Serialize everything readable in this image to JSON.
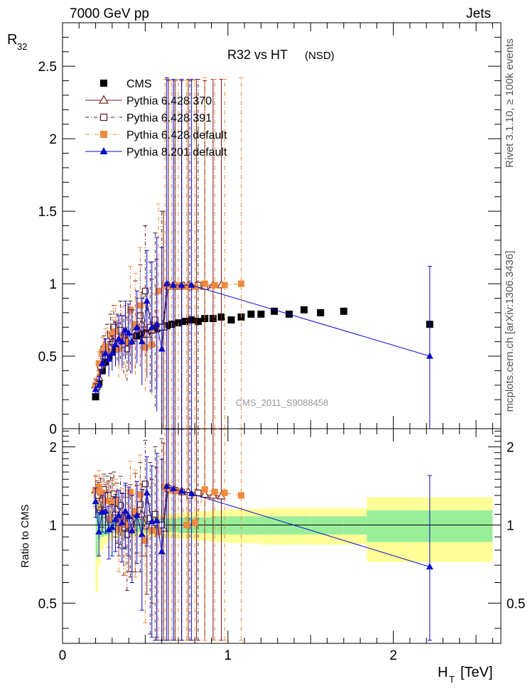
{
  "header": {
    "left": "7000 GeV pp",
    "right": "Jets"
  },
  "side_labels": {
    "rivet": "Rivet 3.1.10, ≥ 100k events",
    "mcplots": "mcplots.cern.ch [arXiv:1306.3436]"
  },
  "chart_data": [
    {
      "type": "scatter",
      "panel": "main",
      "title": "R32 vs HT",
      "title_tag": "(NSD)",
      "watermark": "CMS_2011_S9088458",
      "ylabel": "R",
      "ylabel_sub": "32",
      "xlim": [
        0,
        2.65
      ],
      "ylim": [
        0,
        2.8
      ],
      "yticks": [
        0,
        0.5,
        1,
        1.5,
        2,
        2.5
      ],
      "ytick_labels": [
        "0",
        "0.5",
        "1",
        "1.5",
        "2",
        "2.5"
      ],
      "legend_position": "top-left",
      "series": [
        {
          "name": "CMS",
          "marker": "filled-square",
          "color": "#000000",
          "x": [
            0.2,
            0.22,
            0.24,
            0.26,
            0.28,
            0.3,
            0.32,
            0.34,
            0.36,
            0.38,
            0.4,
            0.42,
            0.45,
            0.48,
            0.51,
            0.54,
            0.57,
            0.6,
            0.63,
            0.66,
            0.7,
            0.74,
            0.78,
            0.82,
            0.86,
            0.91,
            0.96,
            1.02,
            1.08,
            1.14,
            1.2,
            1.28,
            1.37,
            1.46,
            1.56,
            1.7,
            2.22
          ],
          "y": [
            0.22,
            0.32,
            0.4,
            0.46,
            0.5,
            0.53,
            0.55,
            0.57,
            0.59,
            0.6,
            0.61,
            0.63,
            0.64,
            0.65,
            0.66,
            0.68,
            0.69,
            0.7,
            0.71,
            0.72,
            0.73,
            0.74,
            0.75,
            0.74,
            0.76,
            0.76,
            0.77,
            0.75,
            0.77,
            0.79,
            0.79,
            0.81,
            0.79,
            0.82,
            0.8,
            0.81,
            0.72
          ]
        },
        {
          "name": "Pythia 6.428 370",
          "marker": "open-triangle",
          "color": "#7a1a1a",
          "x": [
            0.2,
            0.22,
            0.24,
            0.26,
            0.28,
            0.3,
            0.32,
            0.34,
            0.36,
            0.38,
            0.4,
            0.42,
            0.45,
            0.48,
            0.51,
            0.54,
            0.57,
            0.61,
            0.64,
            0.68,
            0.72,
            0.76,
            0.81,
            0.86,
            0.91,
            0.96
          ],
          "y": [
            0.3,
            0.35,
            0.45,
            0.5,
            0.57,
            0.6,
            0.62,
            0.58,
            0.63,
            0.67,
            0.6,
            0.62,
            0.7,
            0.72,
            0.65,
            0.68,
            0.72,
            0.7,
            0.99,
            0.98,
            0.98,
            0.99,
            0.99,
            0.98,
            0.99,
            0.99
          ],
          "err": [
            0.04,
            0.05,
            0.06,
            0.08,
            0.1,
            0.12,
            0.12,
            0.15,
            0.15,
            0.18,
            0.2,
            0.2,
            0.2,
            0.22,
            0.3,
            0.35,
            0.45,
            0.8,
            1.42,
            1.42,
            1.42,
            1.42,
            1.42,
            1.42,
            1.42,
            1.42
          ]
        },
        {
          "name": "Pythia 6.428 391",
          "marker": "open-square",
          "color": "#5e1f1f",
          "x": [
            0.21,
            0.23,
            0.25,
            0.27,
            0.29,
            0.31,
            0.33,
            0.35,
            0.37,
            0.39,
            0.41,
            0.44,
            0.47,
            0.5,
            0.53,
            0.56,
            0.6,
            0.64,
            0.68,
            0.72,
            0.77,
            0.82
          ],
          "y": [
            0.29,
            0.43,
            0.55,
            0.6,
            0.65,
            0.7,
            0.63,
            0.68,
            0.58,
            0.55,
            0.63,
            0.72,
            0.78,
            0.95,
            0.7,
            0.75,
            0.7,
            0.98,
            0.99,
            0.99,
            0.98,
            0.99
          ],
          "err": [
            0.05,
            0.07,
            0.09,
            0.12,
            0.14,
            0.15,
            0.16,
            0.2,
            0.2,
            0.22,
            0.25,
            0.3,
            0.35,
            0.45,
            0.45,
            0.6,
            0.8,
            1.42,
            1.42,
            1.42,
            1.42,
            1.42
          ]
        },
        {
          "name": "Pythia 6.428 default",
          "marker": "filled-square",
          "color": "#f08a3c",
          "x": [
            0.2,
            0.22,
            0.24,
            0.26,
            0.28,
            0.3,
            0.32,
            0.34,
            0.36,
            0.38,
            0.41,
            0.44,
            0.47,
            0.5,
            0.54,
            0.58,
            0.62,
            0.66,
            0.7,
            0.75,
            0.8,
            0.86,
            0.92,
            0.98,
            1.08
          ],
          "y": [
            0.3,
            0.45,
            0.53,
            0.57,
            0.53,
            0.65,
            0.67,
            0.55,
            0.62,
            0.6,
            0.82,
            0.72,
            0.85,
            0.56,
            0.58,
            0.95,
            0.99,
            0.98,
            0.99,
            0.98,
            0.98,
            1.0,
            0.99,
            0.99,
            1.0
          ],
          "err": [
            0.05,
            0.08,
            0.1,
            0.12,
            0.14,
            0.16,
            0.18,
            0.2,
            0.22,
            0.25,
            0.3,
            0.35,
            0.4,
            0.3,
            0.35,
            0.6,
            1.42,
            1.42,
            1.42,
            1.42,
            1.42,
            1.42,
            1.42,
            1.42,
            1.42
          ]
        },
        {
          "name": "Pythia 8.201 default",
          "marker": "filled-triangle",
          "color": "#0a0acc",
          "x": [
            0.2,
            0.22,
            0.24,
            0.26,
            0.28,
            0.3,
            0.32,
            0.34,
            0.36,
            0.38,
            0.4,
            0.42,
            0.45,
            0.48,
            0.51,
            0.54,
            0.57,
            0.6,
            0.63,
            0.67,
            0.72,
            0.78,
            2.22
          ],
          "y": [
            0.27,
            0.3,
            0.45,
            0.52,
            0.48,
            0.52,
            0.58,
            0.62,
            0.6,
            0.68,
            0.66,
            0.6,
            0.7,
            0.6,
            0.88,
            0.7,
            0.72,
            0.55,
            1.0,
            0.99,
            0.99,
            0.99,
            0.5
          ],
          "err": [
            0.04,
            0.06,
            0.08,
            0.1,
            0.12,
            0.12,
            0.15,
            0.16,
            0.18,
            0.2,
            0.2,
            0.22,
            0.25,
            0.3,
            0.35,
            0.45,
            0.6,
            0.7,
            1.42,
            1.42,
            1.42,
            1.42,
            0.62
          ]
        }
      ]
    },
    {
      "type": "scatter",
      "panel": "ratio",
      "ylabel": "Ratio to CMS",
      "xlabel": "H",
      "xlabel_sub": "T",
      "xlabel_unit": "[TeV]",
      "xlim": [
        0,
        2.65
      ],
      "ylim": [
        0.35,
        2.35
      ],
      "xticks": [
        0,
        1,
        2
      ],
      "xtick_labels": [
        "0",
        "1",
        "2"
      ],
      "yticks": [
        0.5,
        1,
        2
      ],
      "ytick_labels": [
        "0.5",
        "1",
        "2"
      ],
      "reference_line": 1,
      "uncertainty_bands": {
        "x_edges": [
          0.2,
          0.215,
          0.23,
          0.25,
          0.27,
          0.29,
          0.31,
          0.35,
          0.4,
          0.45,
          0.5,
          0.6,
          0.7,
          0.8,
          0.9,
          1.0,
          1.1,
          1.2,
          1.3,
          1.4,
          1.5,
          1.6,
          1.7,
          1.84,
          2.6
        ],
        "inner": [
          0.25,
          0.12,
          0.1,
          0.09,
          0.08,
          0.07,
          0.06,
          0.06,
          0.06,
          0.06,
          0.06,
          0.06,
          0.07,
          0.07,
          0.08,
          0.08,
          0.08,
          0.08,
          0.08,
          0.08,
          0.08,
          0.08,
          0.08,
          0.14
        ],
        "outer": [
          0.45,
          0.3,
          0.2,
          0.16,
          0.14,
          0.12,
          0.11,
          0.1,
          0.1,
          0.1,
          0.1,
          0.11,
          0.12,
          0.13,
          0.14,
          0.15,
          0.15,
          0.16,
          0.16,
          0.16,
          0.16,
          0.16,
          0.16,
          0.28
        ],
        "inner_color": "#99ee99",
        "outer_color": "#ffff99"
      },
      "series": [
        {
          "name": "Pythia 6.428 370",
          "marker": "open-triangle",
          "color": "#7a1a1a",
          "x": [
            0.2,
            0.22,
            0.24,
            0.26,
            0.28,
            0.3,
            0.32,
            0.34,
            0.36,
            0.38,
            0.4,
            0.42,
            0.45,
            0.48,
            0.51,
            0.54,
            0.57,
            0.61,
            0.64,
            0.68,
            0.72,
            0.76,
            0.81,
            0.86,
            0.91,
            0.96
          ],
          "y": [
            1.36,
            1.3,
            1.13,
            1.25,
            1.28,
            1.3,
            1.12,
            1.02,
            1.07,
            1.12,
            0.99,
            0.98,
            1.1,
            1.1,
            0.99,
            1.0,
            1.02,
            0.97,
            1.4,
            1.36,
            1.35,
            1.34,
            1.33,
            1.31,
            1.3,
            1.29
          ],
          "err": [
            0.18,
            0.16,
            0.15,
            0.18,
            0.2,
            0.22,
            0.22,
            0.26,
            0.26,
            0.3,
            0.33,
            0.32,
            0.32,
            0.34,
            0.45,
            0.5,
            0.65,
            1.1,
            2.0,
            2.0,
            2.0,
            2.0,
            2.0,
            2.0,
            2.0,
            2.0
          ]
        },
        {
          "name": "Pythia 6.428 391",
          "marker": "open-square",
          "color": "#5e1f1f",
          "x": [
            0.21,
            0.23,
            0.25,
            0.27,
            0.29,
            0.31,
            0.33,
            0.35,
            0.37,
            0.39,
            0.41,
            0.44,
            0.47,
            0.5,
            0.53,
            0.56,
            0.6,
            0.64,
            0.68,
            0.72,
            0.77,
            0.82
          ],
          "y": [
            1.3,
            1.34,
            1.37,
            1.3,
            1.3,
            1.32,
            1.15,
            1.19,
            0.98,
            0.92,
            1.03,
            1.12,
            1.2,
            1.44,
            1.06,
            1.1,
            1.0,
            1.38,
            1.36,
            1.34,
            1.3,
            1.33
          ],
          "err": [
            0.18,
            0.17,
            0.2,
            0.24,
            0.28,
            0.28,
            0.3,
            0.35,
            0.34,
            0.36,
            0.4,
            0.46,
            0.54,
            0.68,
            0.68,
            0.9,
            1.15,
            2.0,
            2.0,
            2.0,
            2.0,
            2.0
          ]
        },
        {
          "name": "Pythia 6.428 default",
          "marker": "filled-square",
          "color": "#f08a3c",
          "x": [
            0.2,
            0.22,
            0.24,
            0.26,
            0.28,
            0.3,
            0.32,
            0.34,
            0.36,
            0.38,
            0.41,
            0.44,
            0.47,
            0.5,
            0.54,
            0.58,
            0.62,
            0.66,
            0.7,
            0.75,
            0.8,
            0.86,
            0.92,
            0.98,
            1.08
          ],
          "y": [
            1.36,
            1.4,
            1.33,
            1.24,
            1.06,
            1.22,
            1.22,
            0.96,
            1.05,
            1.0,
            1.34,
            1.13,
            1.31,
            0.87,
            0.95,
            0.94,
            1.4,
            1.36,
            1.35,
            1.0,
            1.02,
            1.37,
            1.34,
            1.33,
            1.3
          ],
          "err": [
            0.2,
            0.22,
            0.2,
            0.22,
            0.24,
            0.26,
            0.28,
            0.3,
            0.33,
            0.36,
            0.42,
            0.5,
            0.55,
            0.45,
            0.5,
            0.9,
            2.0,
            2.0,
            2.0,
            2.0,
            2.0,
            2.0,
            2.0,
            2.0,
            2.0
          ]
        },
        {
          "name": "Pythia 8.201 default",
          "marker": "filled-triangle",
          "color": "#0a0acc",
          "x": [
            0.2,
            0.22,
            0.24,
            0.26,
            0.28,
            0.3,
            0.32,
            0.34,
            0.36,
            0.38,
            0.4,
            0.42,
            0.45,
            0.48,
            0.51,
            0.54,
            0.57,
            0.6,
            0.63,
            0.67,
            0.72,
            0.78,
            2.22
          ],
          "y": [
            1.23,
            0.94,
            1.12,
            1.13,
            0.96,
            0.98,
            1.05,
            1.09,
            1.02,
            1.13,
            1.08,
            0.95,
            1.09,
            0.92,
            1.33,
            1.03,
            1.04,
            0.79,
            1.41,
            1.38,
            1.35,
            1.32,
            0.69
          ],
          "err": [
            0.16,
            0.18,
            0.18,
            0.2,
            0.22,
            0.22,
            0.26,
            0.27,
            0.3,
            0.32,
            0.32,
            0.35,
            0.38,
            0.45,
            0.5,
            0.66,
            0.85,
            1.0,
            2.0,
            2.0,
            2.0,
            2.0,
            0.86
          ]
        }
      ]
    }
  ]
}
